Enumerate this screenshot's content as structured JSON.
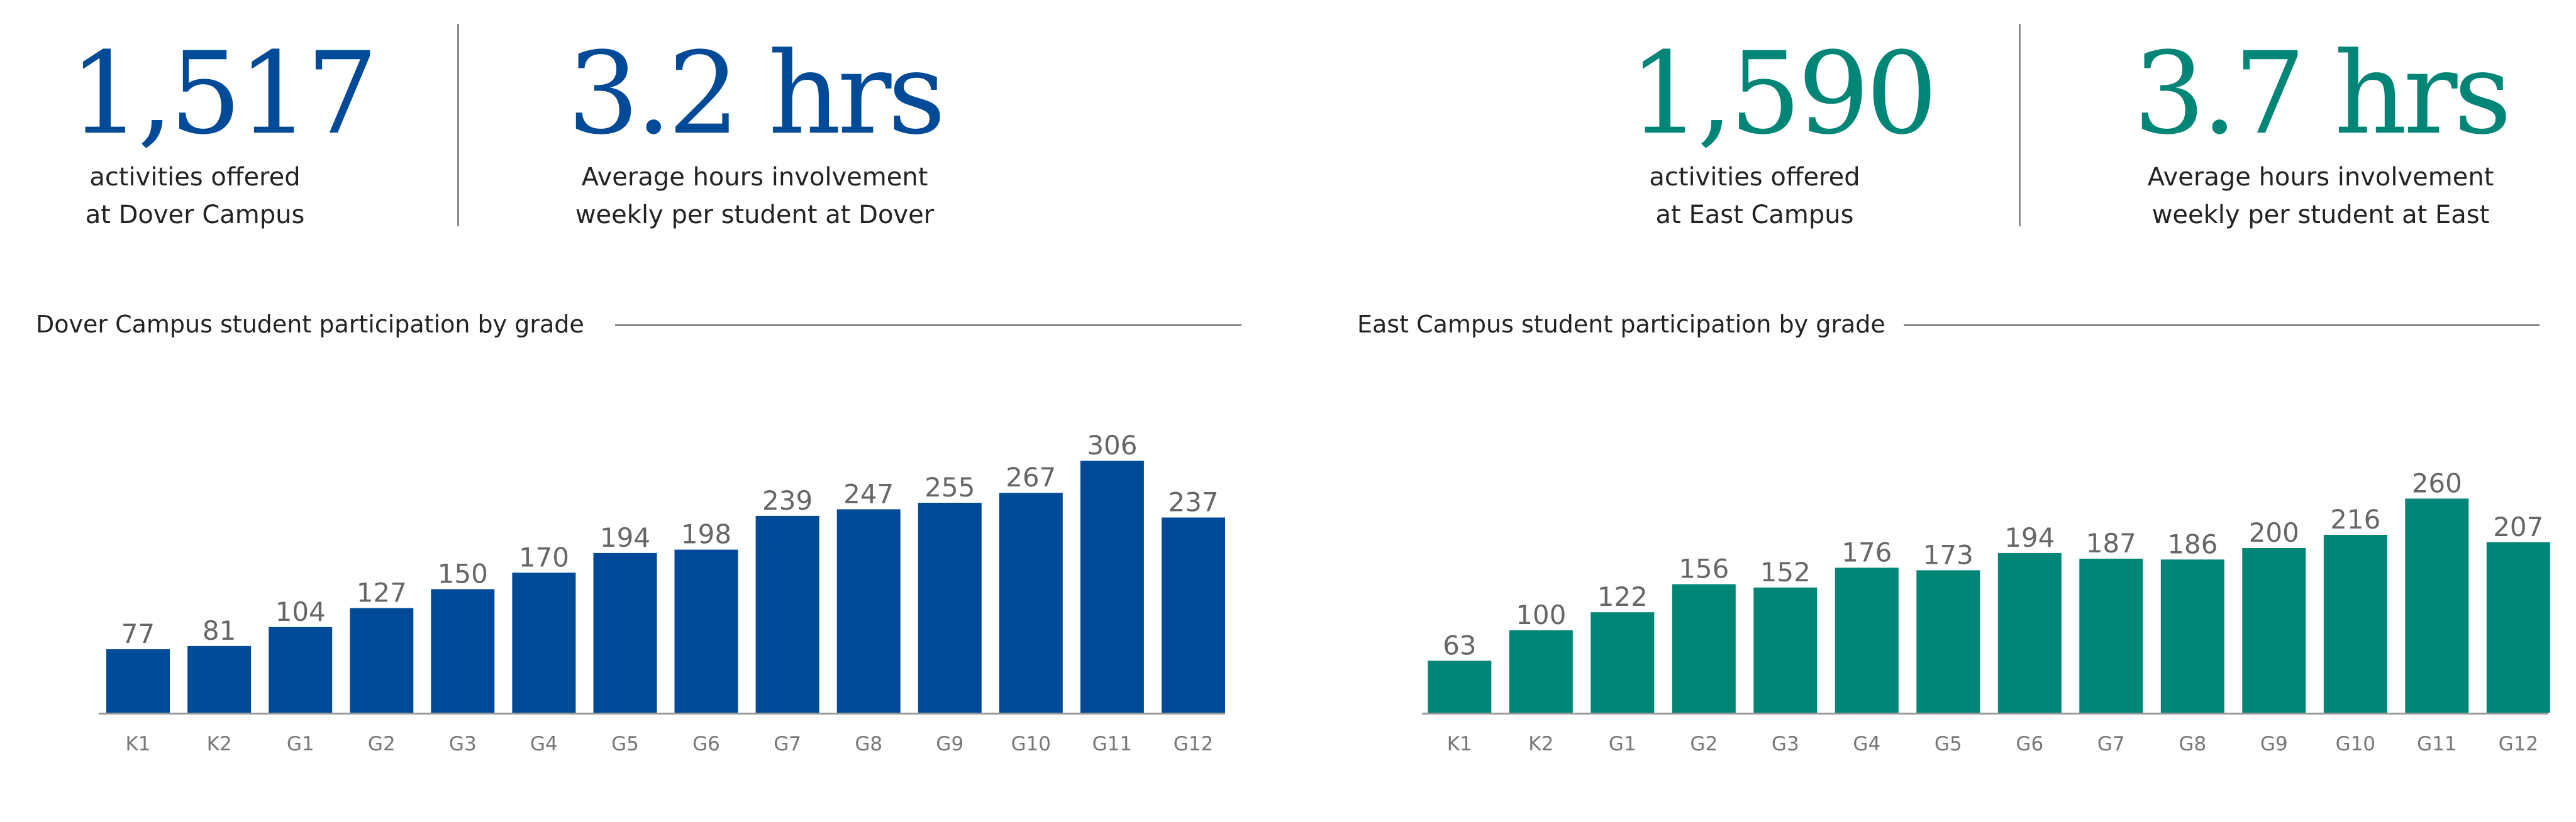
{
  "colors": {
    "dover": "#004a98",
    "east": "#008577",
    "axis": "#999999"
  },
  "stats": {
    "dover_activities": {
      "value": "1,517",
      "caption_line1": "activities offered",
      "caption_line2": "at Dover Campus"
    },
    "dover_hours": {
      "value": "3.2 hrs",
      "caption_line1": "Average hours involvement",
      "caption_line2": "weekly per student at Dover"
    },
    "east_activities": {
      "value": "1,590",
      "caption_line1": "activities offered",
      "caption_line2": "at East Campus"
    },
    "east_hours": {
      "value": "3.7 hrs",
      "caption_line1": "Average hours involvement",
      "caption_line2": "weekly per student at East"
    }
  },
  "chart_data": [
    {
      "type": "bar",
      "title": "Dover Campus student participation by grade",
      "categories": [
        "K1",
        "K2",
        "G1",
        "G2",
        "G3",
        "G4",
        "G5",
        "G6",
        "G7",
        "G8",
        "G9",
        "G10",
        "G11",
        "G12"
      ],
      "values": [
        77,
        81,
        104,
        127,
        150,
        170,
        194,
        198,
        239,
        247,
        255,
        267,
        306,
        237
      ],
      "ylim": [
        0,
        370
      ],
      "grid": false,
      "legend": "none",
      "data_labels": true
    },
    {
      "type": "bar",
      "title": "East Campus student participation by grade",
      "categories": [
        "K1",
        "K2",
        "G1",
        "G2",
        "G3",
        "G4",
        "G5",
        "G6",
        "G7",
        "G8",
        "G9",
        "G10",
        "G11",
        "G12"
      ],
      "values": [
        63,
        100,
        122,
        156,
        152,
        176,
        173,
        194,
        187,
        186,
        200,
        216,
        260,
        207
      ],
      "ylim": [
        0,
        370
      ],
      "grid": false,
      "legend": "none",
      "data_labels": true
    }
  ]
}
